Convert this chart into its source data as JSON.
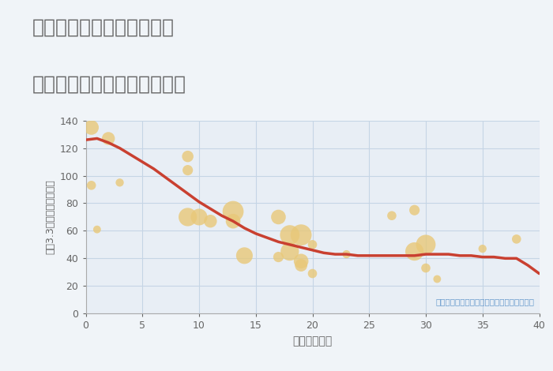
{
  "title_line1": "奈良県吉野郡川上村北和田",
  "title_line2": "築年数別中古マンション価格",
  "xlabel": "築年数（年）",
  "ylabel": "坪（3.3㎡）単価（万円）",
  "annotation": "円の大きさは、取引のあった物件面積を示す",
  "bg_color": "#f0f4f8",
  "plot_bg_color": "#e8eef5",
  "grid_color": "#c5d5e5",
  "bubble_color": "#e8c878",
  "bubble_alpha": 0.8,
  "line_color": "#c94030",
  "line_width": 2.5,
  "title_color": "#666666",
  "tick_color": "#666666",
  "label_color": "#666666",
  "annotation_color": "#6699cc",
  "xlim": [
    0,
    40
  ],
  "ylim": [
    0,
    140
  ],
  "xticks": [
    0,
    5,
    10,
    15,
    20,
    25,
    30,
    35,
    40
  ],
  "yticks": [
    0,
    20,
    40,
    60,
    80,
    100,
    120,
    140
  ],
  "scatter_x": [
    0.5,
    0.5,
    1,
    2,
    3,
    9,
    9,
    9,
    10,
    11,
    13,
    13,
    14,
    17,
    17,
    18,
    18,
    19,
    19,
    19,
    20,
    20,
    23,
    27,
    29,
    29,
    30,
    30,
    31,
    35,
    38
  ],
  "scatter_y": [
    135,
    93,
    61,
    127,
    95,
    114,
    104,
    70,
    70,
    67,
    74,
    67,
    42,
    70,
    41,
    57,
    45,
    57,
    38,
    35,
    50,
    29,
    43,
    71,
    75,
    45,
    50,
    33,
    25,
    47,
    54
  ],
  "scatter_size": [
    180,
    70,
    50,
    140,
    55,
    110,
    90,
    280,
    230,
    140,
    370,
    180,
    230,
    180,
    90,
    320,
    280,
    370,
    180,
    130,
    70,
    70,
    55,
    70,
    90,
    280,
    320,
    70,
    50,
    55,
    70
  ],
  "trend_x": [
    0,
    1,
    2,
    3,
    4,
    5,
    6,
    7,
    8,
    9,
    10,
    11,
    12,
    13,
    14,
    15,
    16,
    17,
    18,
    19,
    20,
    21,
    22,
    23,
    24,
    25,
    26,
    27,
    28,
    29,
    30,
    31,
    32,
    33,
    34,
    35,
    36,
    37,
    38,
    39,
    40
  ],
  "trend_y": [
    126,
    127,
    124,
    120,
    115,
    110,
    105,
    99,
    93,
    87,
    81,
    76,
    71,
    67,
    62,
    58,
    55,
    52,
    50,
    48,
    46,
    44,
    43,
    43,
    42,
    42,
    42,
    42,
    42,
    42,
    43,
    43,
    43,
    42,
    42,
    41,
    41,
    40,
    40,
    35,
    29
  ]
}
